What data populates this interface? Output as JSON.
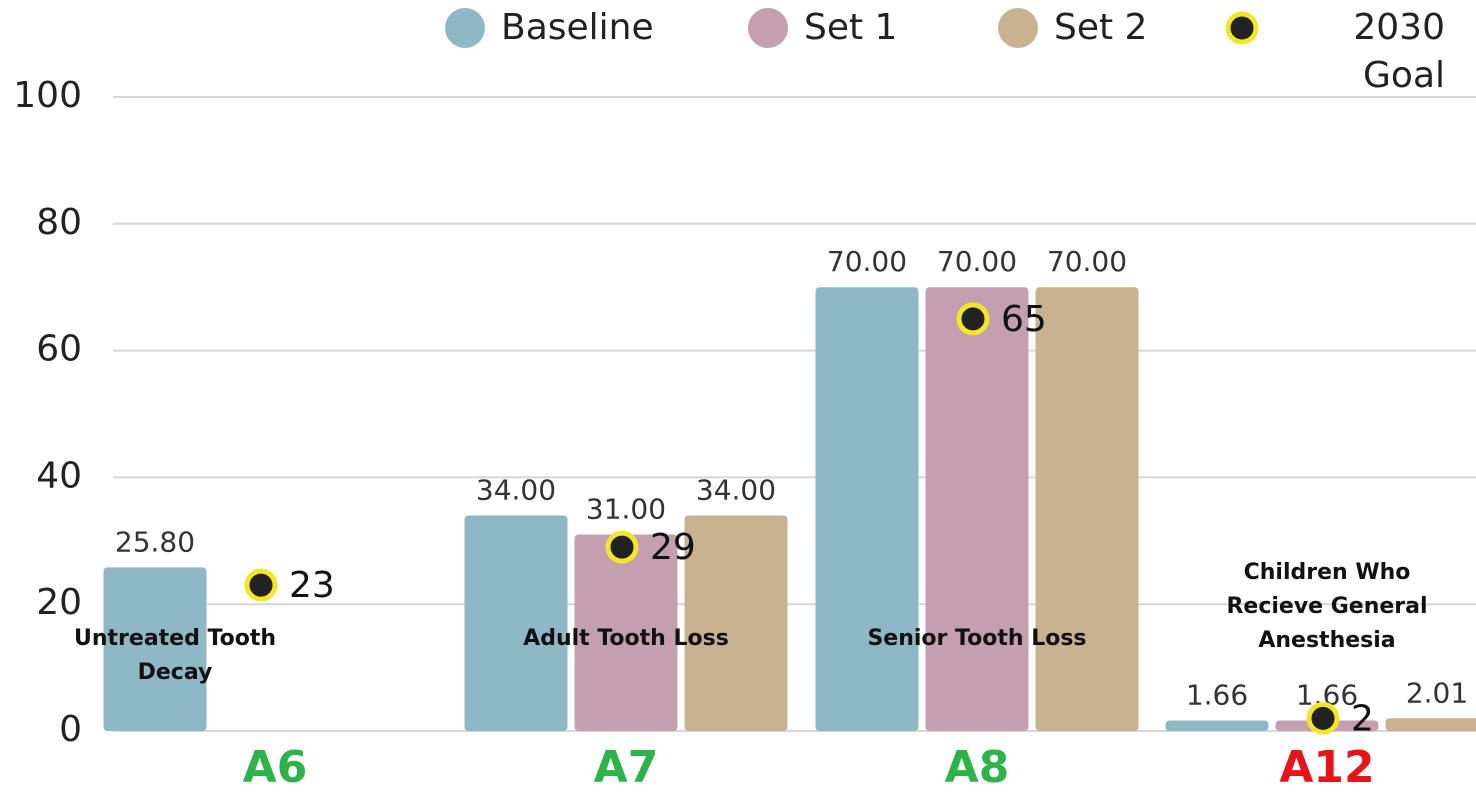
{
  "chart_data": {
    "type": "bar",
    "categories": [
      "A6",
      "A7",
      "A8",
      "A12"
    ],
    "category_colors": [
      "#2db34a",
      "#2db34a",
      "#2db34a",
      "#e8141c"
    ],
    "group_labels": [
      "Untreated Tooth Decay",
      "Adult Tooth Loss",
      "Senior Tooth Loss",
      "Children Who Recieve General Anesthesia"
    ],
    "series": [
      {
        "name": "Baseline",
        "color": "#8fb8c6",
        "values": [
          25.8,
          34,
          70,
          1.66
        ],
        "value_labels": [
          "25.80",
          "34.00",
          "70.00",
          "1.66"
        ]
      },
      {
        "name": "Set 1",
        "color": "#c49fb0",
        "values": [
          null,
          31,
          70,
          1.66
        ],
        "value_labels": [
          null,
          "31.00",
          "70.00",
          "1.66"
        ]
      },
      {
        "name": "Set 2",
        "color": "#c9b28f",
        "values": [
          null,
          34,
          70,
          2.01
        ],
        "value_labels": [
          null,
          "34.00",
          "70.00",
          "2.01"
        ]
      }
    ],
    "goal": {
      "name": "2030 Goal",
      "color": "#222222",
      "edge_color": "#f3e52a",
      "values": [
        23,
        29,
        65,
        2
      ]
    },
    "ylim": [
      0,
      100
    ],
    "yticks": [
      0,
      20,
      40,
      60,
      80,
      100
    ],
    "grid": true
  }
}
